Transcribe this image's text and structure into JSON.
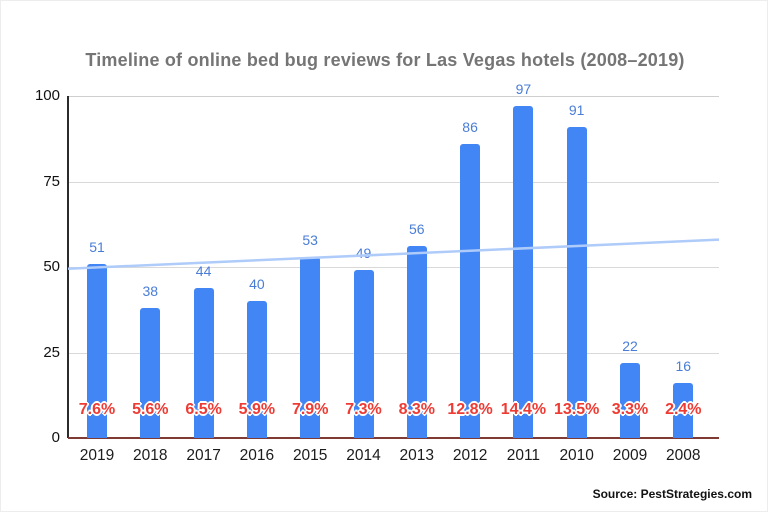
{
  "title": "Timeline of online bed bug reviews for Las Vegas hotels (2008–2019)",
  "source": "Source: PestStrategies.com",
  "colors": {
    "bar": "#4285f4",
    "bar_label": "#4a7dd6",
    "trendline": "#aecbfa",
    "percent_label": "#ee3b33",
    "title": "#757575",
    "gridline": "#d9d9d9",
    "baseline_axis": "#7e3a33",
    "y_axis_line": "#2b2b2b"
  },
  "chart_data": {
    "type": "bar",
    "title": "Timeline of online bed bug reviews for Las Vegas hotels (2008–2019)",
    "categories": [
      "2019",
      "2018",
      "2017",
      "2016",
      "2015",
      "2014",
      "2013",
      "2012",
      "2011",
      "2010",
      "2009",
      "2008"
    ],
    "series": [
      {
        "name": "review-count",
        "values": [
          51,
          38,
          44,
          40,
          53,
          49,
          56,
          86,
          97,
          91,
          22,
          16
        ]
      },
      {
        "name": "percent-labels",
        "values": [
          "7.6%",
          "5.6%",
          "6.5%",
          "5.9%",
          "7.9%",
          "7.3%",
          "8.3%",
          "12.8%",
          "14.4%",
          "13.5%",
          "3.3%",
          "2.4%"
        ]
      }
    ],
    "trendline": {
      "start_value": 49.5,
      "end_value": 58
    },
    "xlabel": "",
    "ylabel": "",
    "ylim": [
      0,
      100
    ],
    "yticks": [
      0,
      25,
      50,
      75,
      100
    ],
    "grid": true,
    "legend": "none"
  }
}
